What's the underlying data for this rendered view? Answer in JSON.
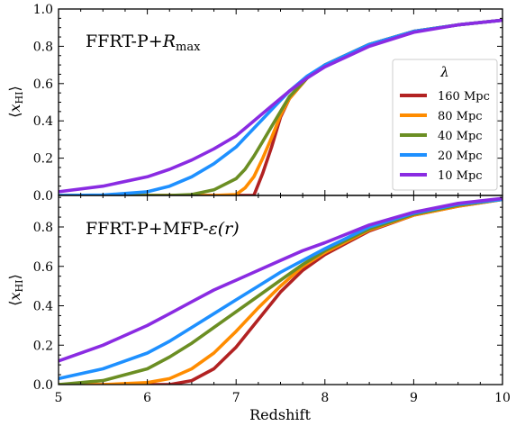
{
  "chart_data": [
    {
      "type": "line",
      "panel": "top",
      "title": "FFRT-P+R_max",
      "title_parts": {
        "main": "FFRT-P+",
        "r": "R",
        "sub": "max"
      },
      "xlabel": "",
      "ylabel": "⟨x_HI⟩",
      "ylabel_parts": {
        "open": "⟨",
        "x": "x",
        "sub": "HI",
        "close": "⟩"
      },
      "xlim": [
        5,
        10
      ],
      "ylim": [
        0,
        1.0
      ],
      "yticks": [
        "0.0",
        "0.2",
        "0.4",
        "0.6",
        "0.8",
        "1.0"
      ],
      "legend": {
        "title": "λ",
        "placement": "center-right"
      },
      "x": [
        5.0,
        5.5,
        6.0,
        6.25,
        6.5,
        6.75,
        7.0,
        7.1,
        7.2,
        7.3,
        7.4,
        7.5,
        7.6,
        7.8,
        8.0,
        8.5,
        9.0,
        9.5,
        10.0
      ],
      "series": [
        {
          "name": "160 Mpc",
          "color": "#b22222",
          "values": [
            0,
            0,
            0,
            0,
            0,
            0,
            0,
            0,
            0.0,
            0.12,
            0.26,
            0.42,
            0.52,
            0.63,
            0.7,
            0.81,
            0.88,
            0.915,
            0.94
          ]
        },
        {
          "name": "80 Mpc",
          "color": "#ff8c00",
          "values": [
            0,
            0,
            0,
            0,
            0,
            0,
            0.005,
            0.04,
            0.1,
            0.2,
            0.31,
            0.43,
            0.52,
            0.63,
            0.7,
            0.81,
            0.88,
            0.915,
            0.94
          ]
        },
        {
          "name": "40 Mpc",
          "color": "#6b8e23",
          "values": [
            0,
            0,
            0,
            0,
            0.005,
            0.03,
            0.09,
            0.14,
            0.21,
            0.29,
            0.37,
            0.45,
            0.53,
            0.63,
            0.7,
            0.81,
            0.88,
            0.915,
            0.94
          ]
        },
        {
          "name": "20 Mpc",
          "color": "#1e90ff",
          "values": [
            0,
            0.002,
            0.02,
            0.05,
            0.1,
            0.17,
            0.26,
            0.31,
            0.36,
            0.41,
            0.46,
            0.51,
            0.56,
            0.64,
            0.7,
            0.81,
            0.88,
            0.915,
            0.94
          ]
        },
        {
          "name": "10 Mpc",
          "color": "#8a2be2",
          "values": [
            0.02,
            0.05,
            0.1,
            0.14,
            0.19,
            0.25,
            0.32,
            0.36,
            0.4,
            0.44,
            0.48,
            0.52,
            0.56,
            0.63,
            0.69,
            0.8,
            0.875,
            0.915,
            0.94
          ]
        }
      ]
    },
    {
      "type": "line",
      "panel": "bottom",
      "title": "FFRT-P+MFP-ε(r)",
      "title_parts": {
        "main": "FFRT-P+MFP-",
        "eps": "ε",
        "arg": "(r)"
      },
      "xlabel": "Redshift",
      "ylabel": "⟨x_HI⟩",
      "ylabel_parts": {
        "open": "⟨",
        "x": "x",
        "sub": "HI",
        "close": "⟩"
      },
      "xlim": [
        5,
        10
      ],
      "ylim": [
        0,
        0.96
      ],
      "xticks": [
        "5",
        "6",
        "7",
        "8",
        "9",
        "10"
      ],
      "yticks": [
        "0.0",
        "0.2",
        "0.4",
        "0.6",
        "0.8"
      ],
      "x": [
        5.0,
        5.5,
        6.0,
        6.25,
        6.5,
        6.75,
        7.0,
        7.25,
        7.5,
        7.75,
        8.0,
        8.5,
        9.0,
        9.5,
        10.0
      ],
      "series": [
        {
          "name": "160 Mpc",
          "color": "#b22222",
          "values": [
            0,
            0,
            0,
            0,
            0.02,
            0.08,
            0.19,
            0.33,
            0.47,
            0.58,
            0.66,
            0.78,
            0.86,
            0.905,
            0.94
          ]
        },
        {
          "name": "80 Mpc",
          "color": "#ff8c00",
          "values": [
            0,
            0,
            0.01,
            0.03,
            0.08,
            0.16,
            0.27,
            0.39,
            0.5,
            0.6,
            0.67,
            0.785,
            0.86,
            0.905,
            0.94
          ]
        },
        {
          "name": "40 Mpc",
          "color": "#6b8e23",
          "values": [
            0,
            0.02,
            0.08,
            0.14,
            0.21,
            0.29,
            0.37,
            0.45,
            0.53,
            0.61,
            0.68,
            0.79,
            0.865,
            0.91,
            0.94
          ]
        },
        {
          "name": "20 Mpc",
          "color": "#1e90ff",
          "values": [
            0.03,
            0.08,
            0.16,
            0.22,
            0.29,
            0.36,
            0.43,
            0.5,
            0.57,
            0.63,
            0.69,
            0.8,
            0.87,
            0.915,
            0.94
          ]
        },
        {
          "name": "10 Mpc",
          "color": "#8a2be2",
          "values": [
            0.12,
            0.2,
            0.3,
            0.36,
            0.42,
            0.48,
            0.53,
            0.58,
            0.63,
            0.68,
            0.72,
            0.81,
            0.875,
            0.92,
            0.945
          ]
        }
      ]
    }
  ]
}
